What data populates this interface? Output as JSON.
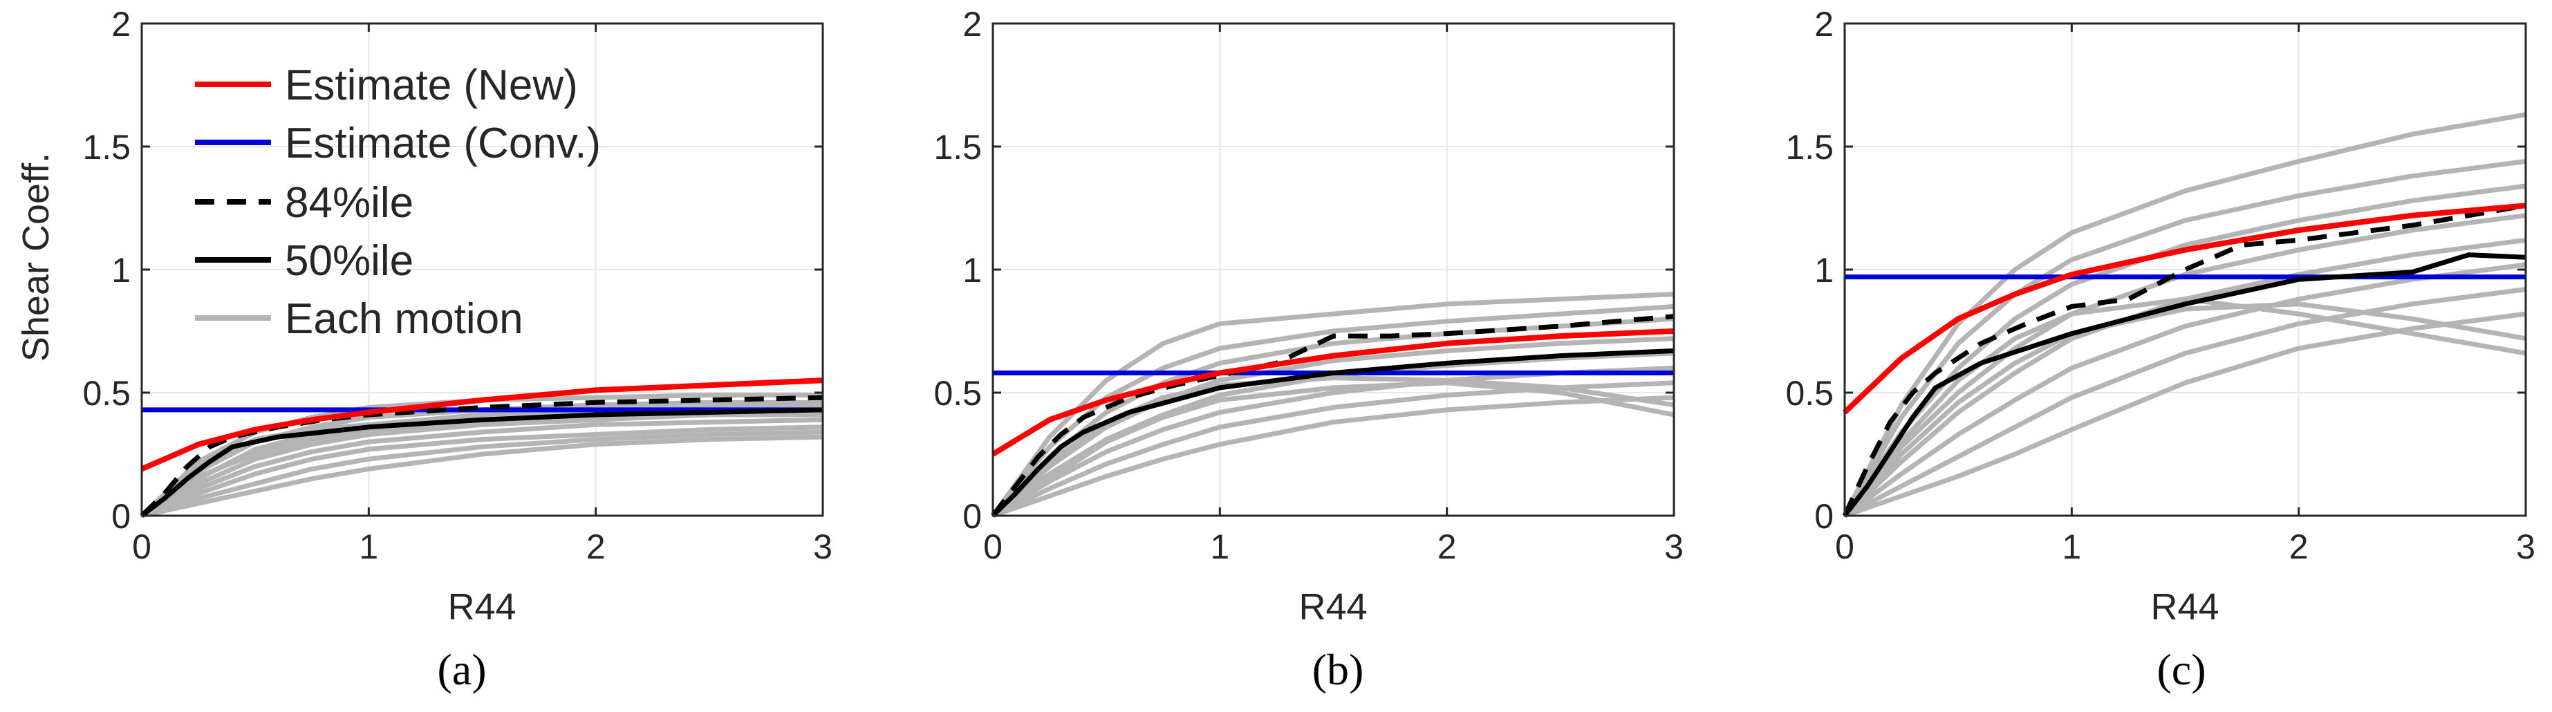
{
  "chart_data": [
    {
      "type": "line",
      "caption": "(a)",
      "xlabel": "R44",
      "ylabel": "Shear Coeff.",
      "xlim": [
        0,
        3
      ],
      "ylim": [
        0,
        2
      ],
      "xticks": [
        "0",
        "1",
        "2",
        "3"
      ],
      "yticks": [
        "0",
        "0.5",
        "1",
        "1.5",
        "2"
      ],
      "grid": true,
      "legend": {
        "position": "top-left",
        "entries": [
          "Estimate (New)",
          "Estimate (Conv.)",
          "84%ile",
          "50%ile",
          "Each motion"
        ]
      },
      "conv": 0.43,
      "new_curve": {
        "x": [
          0,
          0.25,
          0.5,
          0.75,
          1,
          1.5,
          2,
          2.5,
          3
        ],
        "y": [
          0.19,
          0.29,
          0.35,
          0.39,
          0.42,
          0.47,
          0.51,
          0.53,
          0.55
        ]
      },
      "p84": {
        "x": [
          0,
          0.1,
          0.2,
          0.3,
          0.4,
          0.6,
          0.8,
          1,
          1.5,
          2,
          2.5,
          3
        ],
        "y": [
          0,
          0.09,
          0.2,
          0.28,
          0.32,
          0.36,
          0.39,
          0.41,
          0.44,
          0.46,
          0.47,
          0.48
        ]
      },
      "p50": {
        "x": [
          0,
          0.1,
          0.2,
          0.3,
          0.4,
          0.6,
          0.8,
          1,
          1.5,
          2,
          2.5,
          3
        ],
        "y": [
          0,
          0.07,
          0.15,
          0.22,
          0.28,
          0.32,
          0.34,
          0.36,
          0.39,
          0.41,
          0.42,
          0.43
        ]
      },
      "motions": {
        "x": [
          0,
          0.25,
          0.5,
          0.75,
          1,
          1.5,
          2,
          2.5,
          3
        ],
        "lines": [
          [
            0,
            0.22,
            0.34,
            0.4,
            0.44,
            0.47,
            0.48,
            0.49,
            0.49
          ],
          [
            0,
            0.18,
            0.3,
            0.36,
            0.4,
            0.43,
            0.45,
            0.46,
            0.46
          ],
          [
            0,
            0.15,
            0.27,
            0.33,
            0.37,
            0.41,
            0.43,
            0.44,
            0.45
          ],
          [
            0,
            0.13,
            0.23,
            0.29,
            0.33,
            0.37,
            0.39,
            0.41,
            0.42
          ],
          [
            0,
            0.11,
            0.2,
            0.26,
            0.3,
            0.34,
            0.37,
            0.38,
            0.39
          ],
          [
            0,
            0.09,
            0.17,
            0.23,
            0.27,
            0.31,
            0.33,
            0.35,
            0.36
          ],
          [
            0,
            0.07,
            0.13,
            0.19,
            0.23,
            0.28,
            0.31,
            0.33,
            0.34
          ],
          [
            0,
            0.05,
            0.1,
            0.15,
            0.19,
            0.25,
            0.29,
            0.31,
            0.32
          ],
          [
            0,
            0.2,
            0.31,
            0.35,
            0.37,
            0.39,
            0.41,
            0.42,
            0.43
          ],
          [
            0,
            0.16,
            0.25,
            0.31,
            0.35,
            0.38,
            0.4,
            0.41,
            0.41
          ]
        ]
      }
    },
    {
      "type": "line",
      "caption": "(b)",
      "xlabel": "R44",
      "ylabel": "",
      "xlim": [
        0,
        3
      ],
      "ylim": [
        0,
        2
      ],
      "xticks": [
        "0",
        "1",
        "2",
        "3"
      ],
      "yticks": [
        "0",
        "0.5",
        "1",
        "1.5",
        "2"
      ],
      "grid": true,
      "conv": 0.58,
      "new_curve": {
        "x": [
          0,
          0.25,
          0.5,
          0.75,
          1,
          1.5,
          2,
          2.5,
          3
        ],
        "y": [
          0.25,
          0.39,
          0.47,
          0.53,
          0.58,
          0.65,
          0.7,
          0.73,
          0.75
        ]
      },
      "p84": {
        "x": [
          0,
          0.1,
          0.2,
          0.3,
          0.4,
          0.6,
          0.8,
          1,
          1.25,
          1.5,
          1.75,
          2,
          2.5,
          3
        ],
        "y": [
          0,
          0.12,
          0.24,
          0.33,
          0.4,
          0.48,
          0.53,
          0.57,
          0.62,
          0.73,
          0.73,
          0.74,
          0.77,
          0.81
        ]
      },
      "p50": {
        "x": [
          0,
          0.1,
          0.2,
          0.3,
          0.4,
          0.6,
          0.8,
          1,
          1.5,
          2,
          2.5,
          3
        ],
        "y": [
          0,
          0.09,
          0.19,
          0.28,
          0.34,
          0.42,
          0.47,
          0.52,
          0.58,
          0.62,
          0.65,
          0.67
        ]
      },
      "motions": {
        "x": [
          0,
          0.25,
          0.5,
          0.75,
          1,
          1.5,
          2,
          2.5,
          3
        ],
        "lines": [
          [
            0,
            0.32,
            0.55,
            0.7,
            0.78,
            0.82,
            0.86,
            0.88,
            0.9
          ],
          [
            0,
            0.28,
            0.48,
            0.6,
            0.68,
            0.75,
            0.79,
            0.82,
            0.85
          ],
          [
            0,
            0.24,
            0.42,
            0.54,
            0.62,
            0.7,
            0.74,
            0.77,
            0.8
          ],
          [
            0,
            0.2,
            0.36,
            0.47,
            0.55,
            0.63,
            0.67,
            0.7,
            0.72
          ],
          [
            0,
            0.17,
            0.31,
            0.41,
            0.49,
            0.57,
            0.61,
            0.64,
            0.66
          ],
          [
            0,
            0.14,
            0.26,
            0.35,
            0.42,
            0.5,
            0.55,
            0.58,
            0.6
          ],
          [
            0,
            0.11,
            0.21,
            0.29,
            0.36,
            0.44,
            0.49,
            0.52,
            0.54
          ],
          [
            0,
            0.08,
            0.16,
            0.23,
            0.29,
            0.38,
            0.43,
            0.46,
            0.48
          ],
          [
            0,
            0.22,
            0.38,
            0.48,
            0.53,
            0.56,
            0.55,
            0.52,
            0.45
          ],
          [
            0,
            0.15,
            0.3,
            0.4,
            0.47,
            0.52,
            0.54,
            0.5,
            0.41
          ]
        ]
      }
    },
    {
      "type": "line",
      "caption": "(c)",
      "xlabel": "R44",
      "ylabel": "",
      "xlim": [
        0,
        3
      ],
      "ylim": [
        0,
        2
      ],
      "xticks": [
        "0",
        "1",
        "2",
        "3"
      ],
      "yticks": [
        "0",
        "0.5",
        "1",
        "1.5",
        "2"
      ],
      "grid": true,
      "conv": 0.97,
      "new_curve": {
        "x": [
          0,
          0.25,
          0.5,
          0.75,
          1,
          1.5,
          2,
          2.5,
          3
        ],
        "y": [
          0.42,
          0.64,
          0.8,
          0.9,
          0.98,
          1.08,
          1.16,
          1.22,
          1.26
        ]
      },
      "p84": {
        "x": [
          0,
          0.1,
          0.2,
          0.3,
          0.4,
          0.6,
          0.8,
          1,
          1.25,
          1.5,
          1.75,
          2,
          2.5,
          3
        ],
        "y": [
          0,
          0.2,
          0.38,
          0.5,
          0.58,
          0.7,
          0.78,
          0.85,
          0.88,
          1.0,
          1.1,
          1.12,
          1.18,
          1.26
        ]
      },
      "p50": {
        "x": [
          0,
          0.1,
          0.2,
          0.3,
          0.4,
          0.6,
          0.8,
          1,
          1.5,
          2,
          2.5,
          2.75,
          3
        ],
        "y": [
          0,
          0.12,
          0.26,
          0.4,
          0.52,
          0.62,
          0.68,
          0.74,
          0.86,
          0.96,
          0.99,
          1.06,
          1.05
        ]
      },
      "motions": {
        "x": [
          0,
          0.25,
          0.5,
          0.75,
          1,
          1.5,
          2,
          2.5,
          3
        ],
        "lines": [
          [
            0,
            0.45,
            0.78,
            1.0,
            1.15,
            1.32,
            1.44,
            1.55,
            1.63
          ],
          [
            0,
            0.4,
            0.7,
            0.9,
            1.04,
            1.2,
            1.3,
            1.38,
            1.44
          ],
          [
            0,
            0.34,
            0.6,
            0.8,
            0.94,
            1.1,
            1.2,
            1.28,
            1.34
          ],
          [
            0,
            0.28,
            0.5,
            0.68,
            0.82,
            0.98,
            1.08,
            1.16,
            1.22
          ],
          [
            0,
            0.22,
            0.42,
            0.58,
            0.72,
            0.88,
            0.98,
            1.06,
            1.12
          ],
          [
            0,
            0.17,
            0.33,
            0.47,
            0.6,
            0.77,
            0.88,
            0.96,
            1.02
          ],
          [
            0,
            0.12,
            0.24,
            0.36,
            0.48,
            0.66,
            0.78,
            0.86,
            0.92
          ],
          [
            0,
            0.08,
            0.16,
            0.25,
            0.35,
            0.54,
            0.68,
            0.76,
            0.82
          ],
          [
            0,
            0.3,
            0.55,
            0.72,
            0.82,
            0.88,
            0.82,
            0.74,
            0.66
          ],
          [
            0,
            0.25,
            0.46,
            0.62,
            0.74,
            0.84,
            0.86,
            0.8,
            0.72
          ]
        ]
      }
    }
  ],
  "colors": {
    "new": "#ff0000",
    "conv": "#0000dd",
    "percentile": "#000000",
    "motion": "#b4b4b4",
    "grid": "#e6e6e6",
    "axis": "#262626"
  }
}
